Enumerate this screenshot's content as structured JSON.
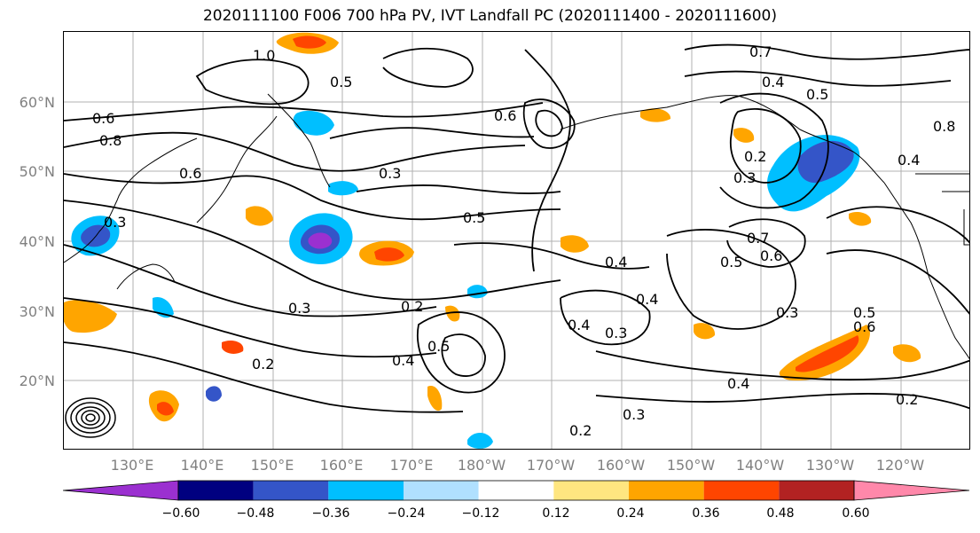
{
  "title": "2020111100 F006 700 hPa PV, IVT Landfall PC (2020111400 - 2020111600)",
  "map": {
    "lat_labels": [
      "60°N",
      "50°N",
      "40°N",
      "30°N",
      "20°N"
    ],
    "lon_labels": [
      "130°E",
      "140°E",
      "150°E",
      "160°E",
      "170°E",
      "180°W",
      "170°W",
      "160°W",
      "150°W",
      "140°W",
      "130°W",
      "120°W"
    ],
    "contour_labels": [
      "1.0",
      "0.5",
      "0.8",
      "0.6",
      "0.7",
      "0.4",
      "0.5",
      "0.3",
      "0.2",
      "0.4",
      "0.3",
      "0.5",
      "0.7",
      "0.6",
      "0.5",
      "0.4",
      "0.3",
      "0.2",
      "0.3",
      "0.4",
      "0.5",
      "0.4",
      "0.3",
      "0.4",
      "0.2",
      "0.5",
      "0.6",
      "0.3",
      "0.4",
      "0.2",
      "0.3",
      "0.2",
      "0.6",
      "0.8",
      "0.6"
    ],
    "lat_range": [
      10,
      70
    ],
    "lon_range": [
      120,
      252
    ]
  },
  "colorbar": {
    "tick_labels": [
      "−0.60",
      "−0.48",
      "−0.36",
      "−0.24",
      "−0.12",
      "0.12",
      "0.24",
      "0.36",
      "0.48",
      "0.60"
    ],
    "colors": [
      "#9b30d0",
      "#000080",
      "#3455c8",
      "#00bfff",
      "#b0e0ff",
      "#ffffff",
      "#ffe680",
      "#ffa500",
      "#ff4500",
      "#b22222",
      "#ff88aa"
    ]
  }
}
